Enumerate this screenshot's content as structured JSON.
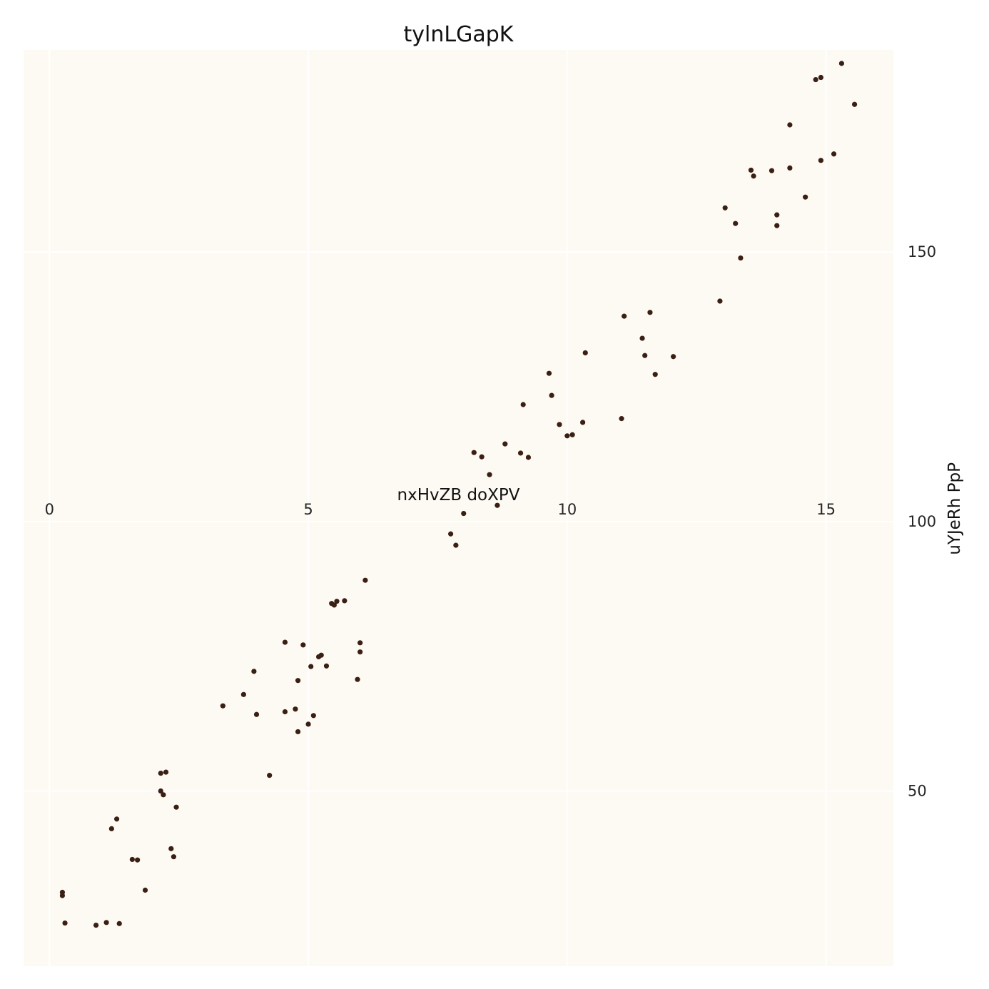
{
  "chart_data": {
    "type": "scatter",
    "title": "tylnLGapK",
    "xlabel": "nxHvZB doXPV",
    "ylabel": "uYJeRh PpP",
    "xlim": [
      -0.5,
      16.3
    ],
    "ylim": [
      17.5,
      187.5
    ],
    "xticks": [
      0,
      5,
      10,
      15
    ],
    "yticks": [
      50,
      100,
      150
    ],
    "grid": true,
    "colors": {
      "background": "#fdfaf3",
      "marker": "#3a1f14",
      "grid": "#ffffff"
    },
    "points": [
      [
        0.25,
        30.6
      ],
      [
        0.25,
        31.2
      ],
      [
        0.3,
        25.5
      ],
      [
        0.9,
        25.1
      ],
      [
        1.1,
        25.6
      ],
      [
        1.35,
        25.4
      ],
      [
        1.2,
        43.0
      ],
      [
        1.3,
        44.8
      ],
      [
        1.6,
        37.3
      ],
      [
        1.7,
        37.2
      ],
      [
        1.85,
        31.6
      ],
      [
        2.15,
        53.3
      ],
      [
        2.25,
        53.5
      ],
      [
        2.15,
        50.0
      ],
      [
        2.2,
        49.3
      ],
      [
        2.35,
        39.3
      ],
      [
        2.4,
        37.8
      ],
      [
        2.45,
        47.0
      ],
      [
        3.35,
        65.8
      ],
      [
        3.75,
        67.9
      ],
      [
        3.95,
        72.2
      ],
      [
        4.0,
        64.2
      ],
      [
        4.25,
        52.9
      ],
      [
        4.55,
        64.7
      ],
      [
        4.55,
        77.6
      ],
      [
        4.75,
        65.2
      ],
      [
        4.8,
        70.5
      ],
      [
        4.8,
        61.0
      ],
      [
        4.9,
        77.1
      ],
      [
        5.0,
        62.4
      ],
      [
        5.05,
        73.1
      ],
      [
        5.1,
        64.0
      ],
      [
        5.2,
        74.9
      ],
      [
        5.25,
        75.2
      ],
      [
        5.35,
        73.2
      ],
      [
        5.45,
        84.8
      ],
      [
        5.5,
        84.5
      ],
      [
        5.55,
        85.2
      ],
      [
        5.7,
        85.3
      ],
      [
        5.95,
        70.7
      ],
      [
        6.0,
        77.5
      ],
      [
        6.0,
        75.8
      ],
      [
        6.1,
        89.1
      ],
      [
        7.75,
        97.7
      ],
      [
        7.85,
        95.6
      ],
      [
        8.0,
        101.5
      ],
      [
        8.2,
        112.8
      ],
      [
        8.35,
        112.0
      ],
      [
        8.5,
        108.7
      ],
      [
        8.65,
        103.0
      ],
      [
        8.8,
        114.4
      ],
      [
        9.1,
        112.7
      ],
      [
        9.15,
        121.7
      ],
      [
        9.25,
        111.9
      ],
      [
        9.65,
        127.5
      ],
      [
        9.7,
        123.4
      ],
      [
        9.85,
        118.0
      ],
      [
        10.0,
        115.9
      ],
      [
        10.1,
        116.1
      ],
      [
        10.3,
        118.4
      ],
      [
        10.35,
        131.3
      ],
      [
        11.05,
        119.1
      ],
      [
        11.1,
        138.1
      ],
      [
        11.45,
        134.0
      ],
      [
        11.5,
        130.8
      ],
      [
        11.6,
        138.8
      ],
      [
        11.7,
        127.3
      ],
      [
        12.05,
        130.6
      ],
      [
        12.95,
        140.9
      ],
      [
        13.05,
        158.2
      ],
      [
        13.25,
        155.3
      ],
      [
        13.35,
        148.9
      ],
      [
        13.55,
        165.2
      ],
      [
        13.6,
        164.1
      ],
      [
        13.95,
        165.1
      ],
      [
        14.05,
        154.9
      ],
      [
        14.05,
        156.9
      ],
      [
        14.3,
        173.6
      ],
      [
        14.3,
        165.6
      ],
      [
        14.6,
        160.2
      ],
      [
        14.8,
        182.0
      ],
      [
        14.9,
        182.4
      ],
      [
        14.9,
        167.0
      ],
      [
        15.15,
        168.2
      ],
      [
        15.3,
        185.0
      ],
      [
        15.55,
        177.4
      ]
    ]
  }
}
